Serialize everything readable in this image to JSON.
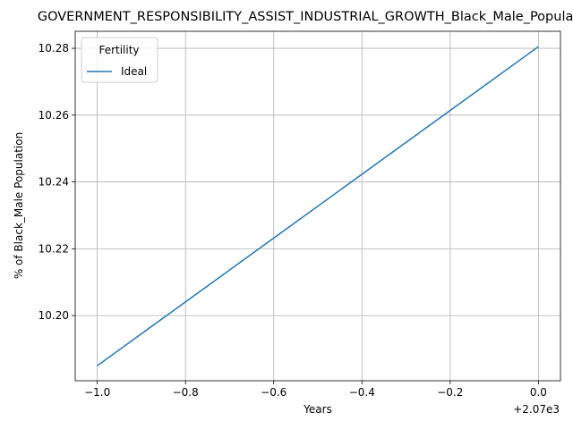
{
  "chart_data": {
    "type": "line",
    "title": "GOVERNMENT_RESPONSIBILITY_ASSIST_INDUSTRIAL_GROWTH_Black_Male_Population",
    "xlabel": "Years",
    "ylabel": "% of Black_Male Population",
    "x_offset_label": "+2.07e3",
    "xlim": [
      -1.05,
      0.05
    ],
    "ylim": [
      10.1805,
      10.2851
    ],
    "x_ticks": [
      -1.0,
      -0.8,
      -0.6,
      -0.4,
      -0.2,
      0.0
    ],
    "x_tick_labels": [
      "−1.0",
      "−0.8",
      "−0.6",
      "−0.4",
      "−0.2",
      "0.0"
    ],
    "y_ticks": [
      10.2,
      10.22,
      10.24,
      10.26,
      10.28
    ],
    "y_tick_labels": [
      "10.20",
      "10.22",
      "10.24",
      "10.26",
      "10.28"
    ],
    "grid": true,
    "legend": {
      "title": "Fertility",
      "placement": "top-left"
    },
    "series": [
      {
        "name": "Ideal",
        "color": "#1f77b4",
        "x": [
          -1.0,
          0.0
        ],
        "y": [
          10.185,
          10.2805
        ]
      }
    ]
  }
}
